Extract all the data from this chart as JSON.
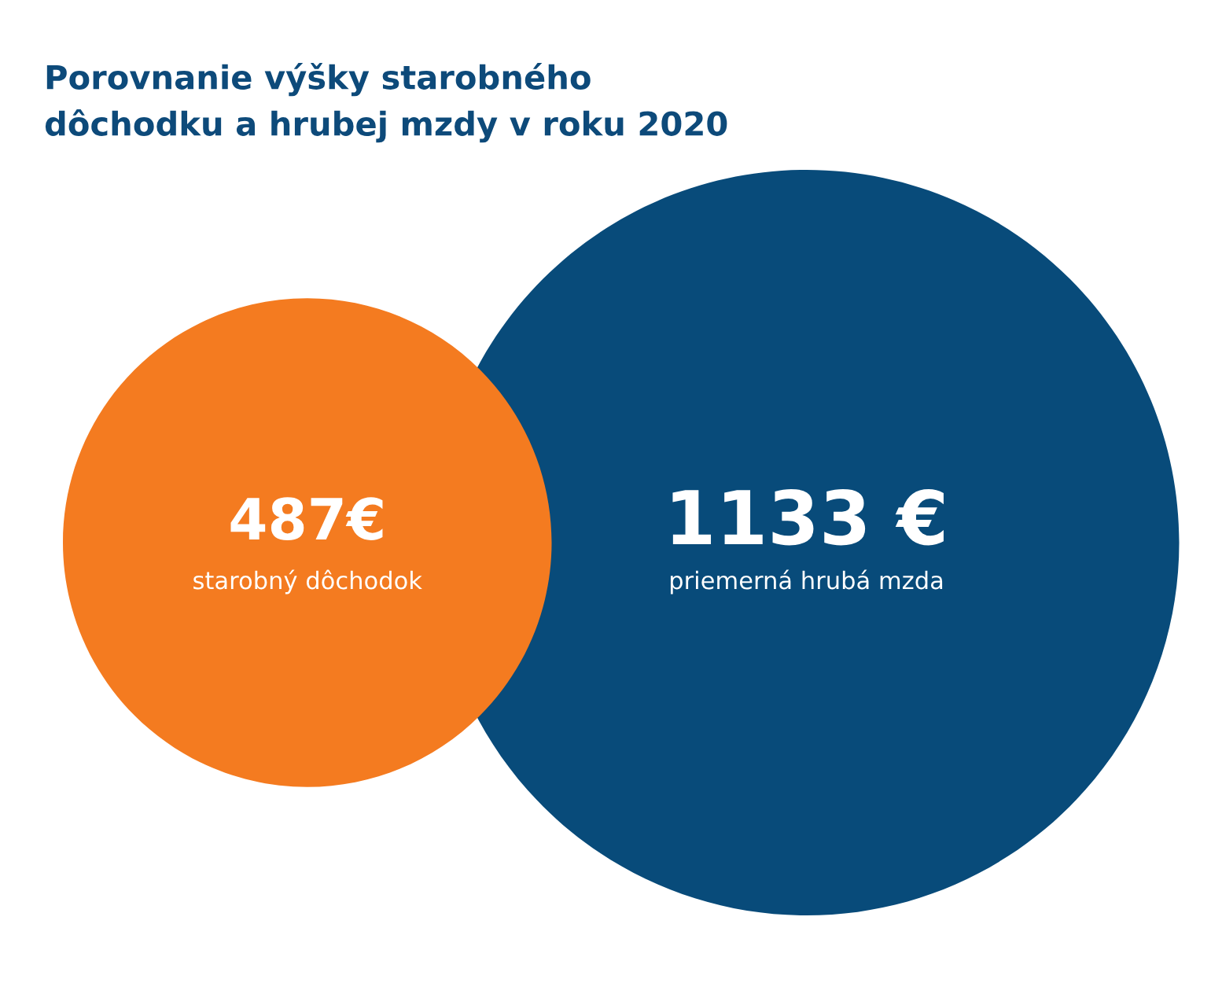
{
  "chart_data": {
    "type": "other",
    "title": "Porovnanie výšky starobného\ndôchodku a hrubej mzdy v roku 2020",
    "categories": [
      "starobný dôchodok",
      "priemerná hrubá mzda"
    ],
    "values": [
      487,
      1133
    ],
    "value_labels": [
      "487€",
      "1133 €"
    ],
    "colors": [
      "#f47b20",
      "#084b7a"
    ]
  }
}
